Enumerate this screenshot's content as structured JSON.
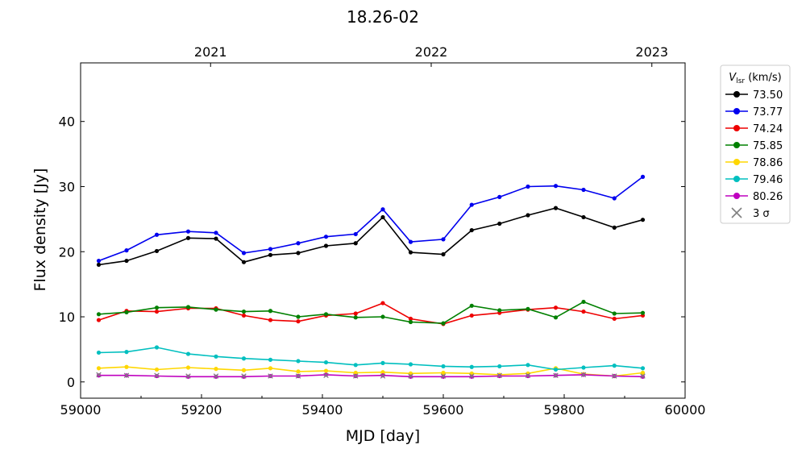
{
  "chart_data": {
    "type": "line",
    "title": "18.26-02",
    "xlabel": "MJD [day]",
    "ylabel": "Flux density [Jy]",
    "xlim": [
      59000,
      60000
    ],
    "ylim": [
      -2.5,
      49
    ],
    "xticks": [
      59000,
      59200,
      59400,
      59600,
      59800,
      60000
    ],
    "yticks": [
      0,
      10,
      20,
      30,
      40
    ],
    "top_axis": {
      "ticks": [
        {
          "x": 59215,
          "label": "2021"
        },
        {
          "x": 59580,
          "label": "2022"
        },
        {
          "x": 59945,
          "label": "2023"
        }
      ]
    },
    "legend": {
      "title_main": "V",
      "title_sub": "lsr",
      "title_unit": " (km/s)",
      "placement": "outside-right"
    },
    "x": [
      59030,
      59076,
      59126,
      59178,
      59224,
      59270,
      59314,
      59360,
      59406,
      59455,
      59500,
      59546,
      59600,
      59647,
      59693,
      59740,
      59786,
      59832,
      59883,
      59930
    ],
    "series": [
      {
        "name": "73.50",
        "color": "#000000",
        "values": [
          18.0,
          18.6,
          20.1,
          22.1,
          22.0,
          18.4,
          19.5,
          19.8,
          20.9,
          21.3,
          25.3,
          19.9,
          19.6,
          23.3,
          24.3,
          25.6,
          26.7,
          25.3,
          23.7,
          24.9
        ]
      },
      {
        "name": "73.77",
        "color": "#0000ee",
        "values": [
          18.6,
          20.2,
          22.6,
          23.1,
          22.9,
          19.8,
          20.4,
          21.3,
          22.3,
          22.7,
          26.5,
          21.5,
          21.9,
          27.2,
          28.4,
          30.0,
          30.1,
          29.5,
          28.2,
          31.5
        ]
      },
      {
        "name": "74.24",
        "color": "#ee0000",
        "values": [
          9.5,
          10.9,
          10.8,
          11.3,
          11.3,
          10.2,
          9.5,
          9.3,
          10.2,
          10.5,
          12.1,
          9.7,
          8.9,
          10.2,
          10.6,
          11.1,
          11.4,
          10.8,
          9.7,
          10.2
        ]
      },
      {
        "name": "75.85",
        "color": "#008000",
        "values": [
          10.4,
          10.7,
          11.4,
          11.5,
          11.1,
          10.8,
          10.9,
          10.0,
          10.4,
          9.9,
          10.0,
          9.2,
          9.0,
          11.7,
          11.0,
          11.2,
          9.9,
          12.3,
          10.5,
          10.6
        ]
      },
      {
        "name": "78.86",
        "color": "#ffd700",
        "values": [
          2.1,
          2.3,
          1.9,
          2.2,
          2.0,
          1.8,
          2.1,
          1.6,
          1.7,
          1.4,
          1.5,
          1.3,
          1.4,
          1.3,
          1.1,
          1.3,
          2.1,
          1.2,
          0.9,
          1.4
        ]
      },
      {
        "name": "79.46",
        "color": "#00bfbf",
        "values": [
          4.5,
          4.6,
          5.3,
          4.3,
          3.9,
          3.6,
          3.4,
          3.2,
          3.0,
          2.6,
          2.9,
          2.7,
          2.4,
          2.3,
          2.4,
          2.6,
          1.9,
          2.2,
          2.5,
          2.1
        ]
      },
      {
        "name": "80.26",
        "color": "#bf00bf",
        "values": [
          1.0,
          1.0,
          0.9,
          0.8,
          0.8,
          0.8,
          0.9,
          0.9,
          1.1,
          0.9,
          1.0,
          0.8,
          0.8,
          0.8,
          0.9,
          0.9,
          1.0,
          1.1,
          0.9,
          0.8
        ]
      }
    ],
    "sigma3": {
      "name": "3 σ",
      "color": "#808080",
      "x": [
        59030,
        59076,
        59126,
        59178,
        59224,
        59270,
        59314,
        59360,
        59406,
        59455,
        59500,
        59546,
        59600,
        59647,
        59693,
        59740,
        59786,
        59832,
        59883,
        59930
      ],
      "values": [
        1.1,
        1.0,
        1.0,
        0.9,
        0.9,
        0.9,
        0.9,
        0.9,
        1.0,
        0.9,
        0.9,
        0.9,
        0.9,
        0.9,
        1.0,
        1.0,
        1.0,
        1.1,
        0.9,
        0.9
      ]
    }
  }
}
